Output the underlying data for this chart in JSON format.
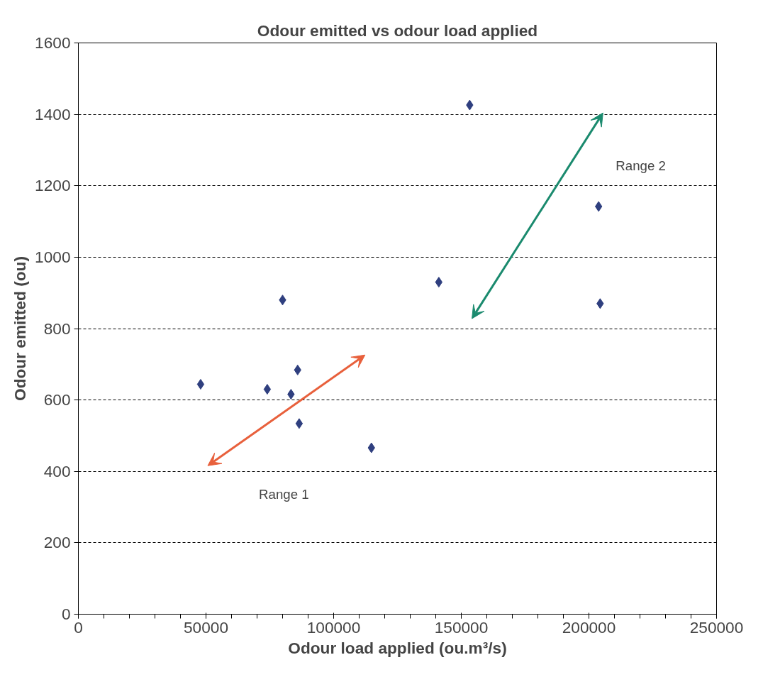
{
  "chart_data": {
    "type": "scatter",
    "title": "Odour emitted vs odour load applied",
    "xlabel": "Odour load applied (ou.m³/s)",
    "ylabel": "Odour emitted (ou)",
    "x": [
      47900,
      74000,
      80000,
      83300,
      85900,
      86500,
      114800,
      141200,
      153300,
      203800,
      204400
    ],
    "series": [
      {
        "color": "#2f3f7f",
        "values": [
          644,
          630,
          880,
          616,
          684,
          534,
          466,
          930,
          1426,
          1142,
          870
        ]
      }
    ],
    "xlim": [
      0,
      250000
    ],
    "xticks": [
      0,
      50000,
      100000,
      150000,
      200000,
      250000
    ],
    "ylim": [
      0,
      1600
    ],
    "yticks": [
      0,
      200,
      400,
      600,
      800,
      1000,
      1200,
      1400,
      1600
    ],
    "grid": "y",
    "marker": "diamond",
    "annotations": [
      "Range 1",
      "Range 2"
    ]
  }
}
